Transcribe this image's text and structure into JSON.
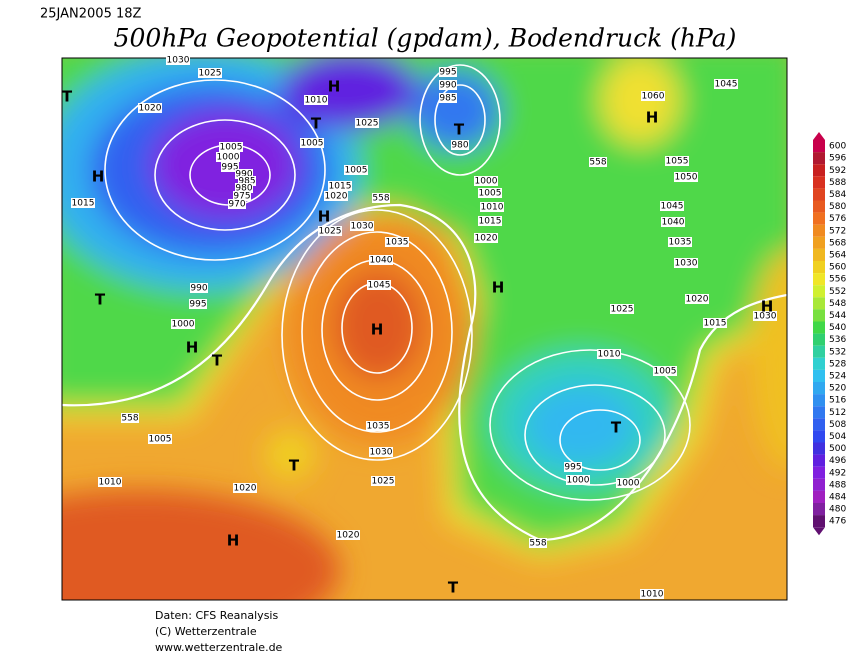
{
  "header": {
    "date": "25JAN2005 18Z",
    "title": "500hPa Geopotential (gpdam), Bodendruck (hPa)"
  },
  "legend": {
    "values": [
      600,
      596,
      592,
      588,
      584,
      580,
      576,
      572,
      568,
      564,
      560,
      556,
      552,
      548,
      544,
      540,
      536,
      532,
      528,
      524,
      520,
      516,
      512,
      508,
      504,
      500,
      496,
      492,
      488,
      484,
      480,
      476
    ],
    "colors": [
      "#c8004b",
      "#b01830",
      "#c82020",
      "#d83020",
      "#e04420",
      "#e85a20",
      "#f07020",
      "#f08a20",
      "#f0a020",
      "#f0b820",
      "#f0d020",
      "#f0e628",
      "#d0f030",
      "#a8e838",
      "#78e040",
      "#40d848",
      "#30d070",
      "#30d0a0",
      "#30d0d0",
      "#30c0f0",
      "#30a8f0",
      "#3090f0",
      "#3078f0",
      "#3060f0",
      "#3048f0",
      "#4030e0",
      "#6020e0",
      "#8020e0",
      "#9020d0",
      "#a020c0",
      "#8020a0",
      "#601070"
    ]
  },
  "map": {
    "labels": [
      "1030",
      "1025",
      "1020",
      "1010",
      "1025",
      "995",
      "990",
      "985",
      "980",
      "1005",
      "1000",
      "995",
      "990",
      "985",
      "980",
      "975",
      "970",
      "1005",
      "1005",
      "1015",
      "1020",
      "1025",
      "1030",
      "1035",
      "1040",
      "1045",
      "1000",
      "1005",
      "1010",
      "1015",
      "1020",
      "1015",
      "990",
      "995",
      "1000",
      "1060",
      "1045",
      "1055",
      "1050",
      "1045",
      "1040",
      "1035",
      "1030",
      "1025",
      "1020",
      "1015",
      "1030",
      "1010",
      "1005",
      "1035",
      "1030",
      "1025",
      "995",
      "1000",
      "1000",
      "1005",
      "1010",
      "1020",
      "1020",
      "1010",
      "558",
      "558",
      "558",
      "558",
      "H",
      "H",
      "H",
      "H",
      "H",
      "H",
      "H",
      "H",
      "H",
      "T",
      "T",
      "T",
      "T",
      "T",
      "T",
      "T",
      "T"
    ]
  },
  "footer": {
    "lines": [
      "Daten: CFS Reanalysis",
      "(C) Wetterzentrale",
      "www.wetterzentrale.de"
    ]
  }
}
